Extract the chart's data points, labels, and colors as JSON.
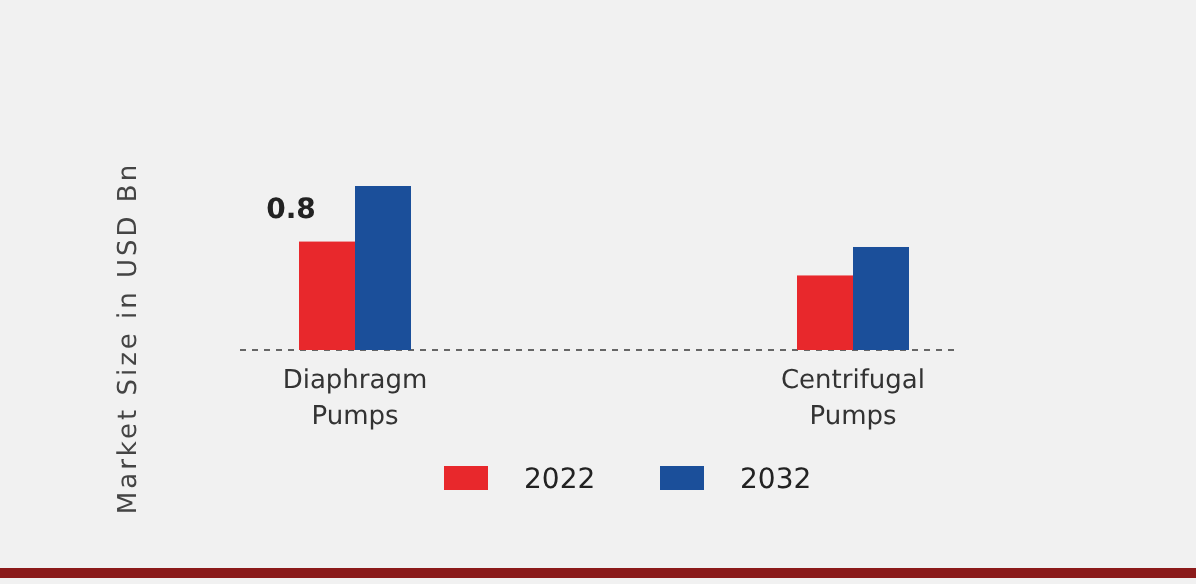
{
  "chart_data": {
    "type": "bar",
    "ylabel": "Market Size in USD Bn",
    "categories": [
      "Diaphragm Pumps",
      "Centrifugal Pumps"
    ],
    "series": [
      {
        "name": "2022",
        "color": "#e8282c",
        "values": [
          0.8,
          0.55
        ],
        "value_labels": [
          "0.8",
          null
        ]
      },
      {
        "name": "2032",
        "color": "#1b4f9a",
        "values": [
          1.21,
          0.76
        ]
      }
    ],
    "legend": "bottom"
  }
}
